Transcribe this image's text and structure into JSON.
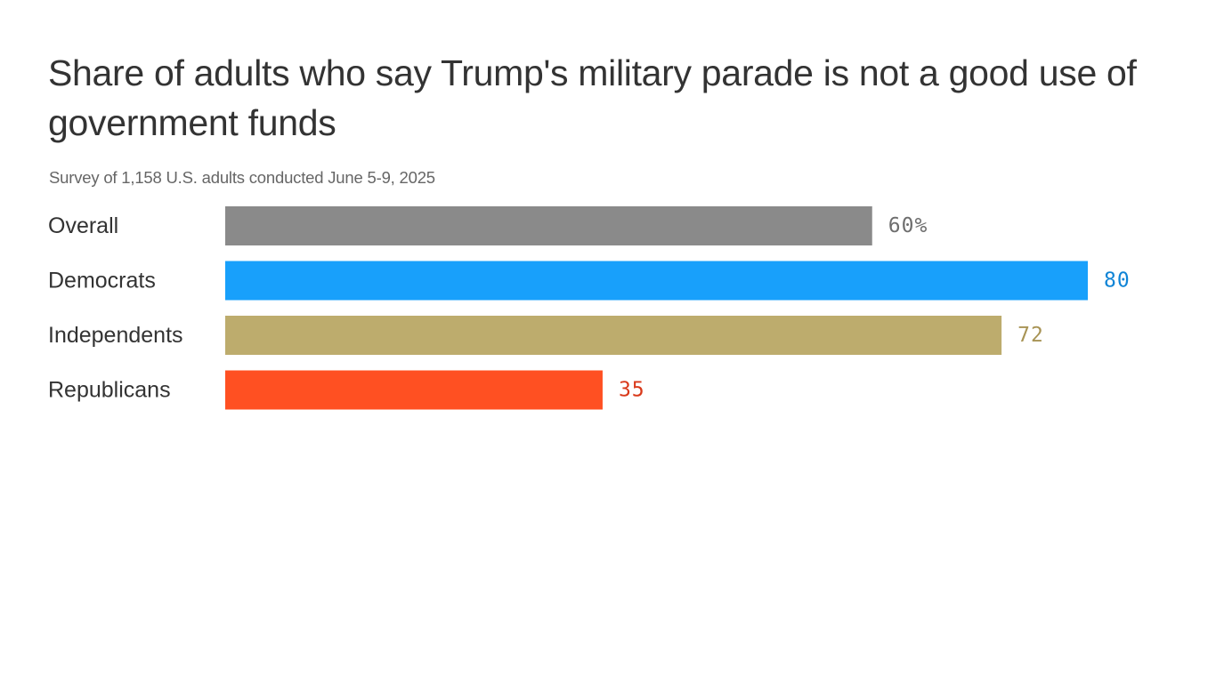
{
  "chart_data": {
    "type": "bar",
    "orientation": "horizontal",
    "title": "Share of adults who say Trump's military parade is not a good use of government funds",
    "subtitle": "Survey of 1,158 U.S. adults conducted June 5-9, 2025",
    "categories": [
      "Overall",
      "Democrats",
      "Independents",
      "Republicans"
    ],
    "values": [
      60,
      80,
      72,
      35
    ],
    "value_labels": [
      "60%",
      "80",
      "72",
      "35"
    ],
    "unit": "%",
    "xlim": [
      0,
      80
    ],
    "bar_colors": [
      "#8a8a8a",
      "#18a0fb",
      "#bdac6d",
      "#ff5022"
    ],
    "label_colors": [
      "#6e6e6e",
      "#0f84d6",
      "#a89455",
      "#d9391a"
    ],
    "grid": false,
    "legend": "none"
  }
}
